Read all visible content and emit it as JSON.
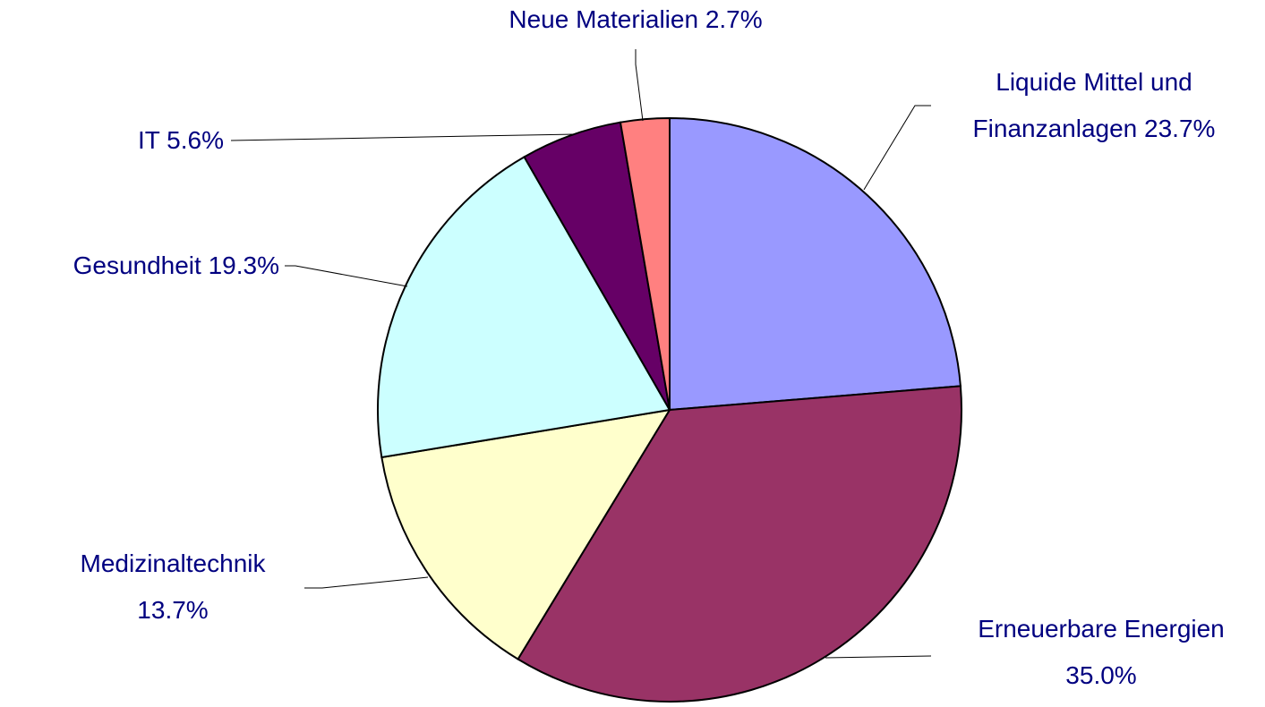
{
  "chart_data": {
    "type": "pie",
    "categories": [
      "Liquide Mittel und Finanzanlagen",
      "Erneuerbare Energien",
      "Medizinaltechnik",
      "Gesundheit",
      "IT",
      "Neue Materialien"
    ],
    "values": [
      23.7,
      35.0,
      13.7,
      19.3,
      5.6,
      2.7
    ],
    "value_labels": [
      "23.7%",
      "35.0%",
      "13.7%",
      "19.3%",
      "5.6%",
      "2.7%"
    ],
    "colors": [
      "#9999ff",
      "#993366",
      "#ffffcc",
      "#ccffff",
      "#660066",
      "#ff8080"
    ]
  }
}
